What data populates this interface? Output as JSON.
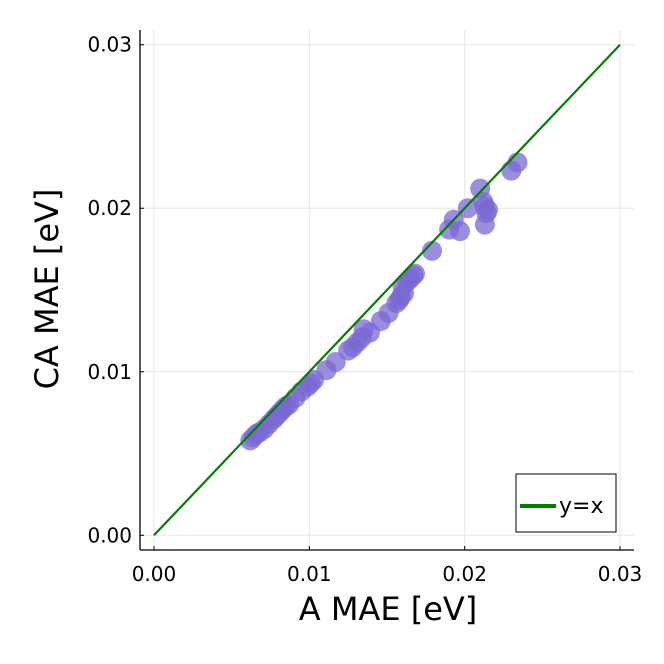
{
  "chart_data": {
    "type": "scatter",
    "title": "",
    "xlabel": "A MAE [eV]",
    "ylabel": "CA MAE [eV]",
    "xlim": [
      -0.0009,
      0.0309
    ],
    "ylim": [
      -0.0009,
      0.0309
    ],
    "xticks": [
      0.0,
      0.01,
      0.02,
      0.03
    ],
    "yticks": [
      0.0,
      0.01,
      0.02,
      0.03
    ],
    "xtick_labels": [
      "0.00",
      "0.01",
      "0.02",
      "0.03"
    ],
    "ytick_labels": [
      "0.00",
      "0.01",
      "0.02",
      "0.03"
    ],
    "grid": true,
    "legend_position": "bottom-right",
    "series": [
      {
        "name": "data",
        "kind": "scatter",
        "color": "#7a68d3",
        "points": [
          [
            0.0062,
            0.0058
          ],
          [
            0.0064,
            0.006
          ],
          [
            0.0066,
            0.0062
          ],
          [
            0.0068,
            0.0063
          ],
          [
            0.0071,
            0.0065
          ],
          [
            0.0074,
            0.0068
          ],
          [
            0.0077,
            0.0071
          ],
          [
            0.0079,
            0.0073
          ],
          [
            0.0081,
            0.0075
          ],
          [
            0.0083,
            0.0077
          ],
          [
            0.0085,
            0.0079
          ],
          [
            0.0087,
            0.008
          ],
          [
            0.0091,
            0.0084
          ],
          [
            0.0095,
            0.0088
          ],
          [
            0.0099,
            0.0091
          ],
          [
            0.0101,
            0.0093
          ],
          [
            0.0103,
            0.0095
          ],
          [
            0.0111,
            0.0101
          ],
          [
            0.0117,
            0.0106
          ],
          [
            0.0125,
            0.0113
          ],
          [
            0.0128,
            0.0115
          ],
          [
            0.0131,
            0.0118
          ],
          [
            0.0134,
            0.0121
          ],
          [
            0.0135,
            0.0126
          ],
          [
            0.0139,
            0.0124
          ],
          [
            0.0146,
            0.0131
          ],
          [
            0.0151,
            0.0136
          ],
          [
            0.0156,
            0.0142
          ],
          [
            0.0158,
            0.0144
          ],
          [
            0.0159,
            0.0146
          ],
          [
            0.0161,
            0.0148
          ],
          [
            0.016,
            0.0152
          ],
          [
            0.0163,
            0.0155
          ],
          [
            0.0165,
            0.0157
          ],
          [
            0.0167,
            0.0159
          ],
          [
            0.0168,
            0.016
          ],
          [
            0.0179,
            0.0174
          ],
          [
            0.019,
            0.0187
          ],
          [
            0.0193,
            0.0193
          ],
          [
            0.0197,
            0.0186
          ],
          [
            0.0202,
            0.02
          ],
          [
            0.021,
            0.0212
          ],
          [
            0.0212,
            0.0204
          ],
          [
            0.0213,
            0.0201
          ],
          [
            0.0214,
            0.0197
          ],
          [
            0.0215,
            0.0199
          ],
          [
            0.0213,
            0.019
          ],
          [
            0.023,
            0.0223
          ],
          [
            0.0234,
            0.0228
          ]
        ]
      },
      {
        "name": "y=x",
        "kind": "line",
        "color": "#008000",
        "points": [
          [
            0.0,
            0.0
          ],
          [
            0.03,
            0.03
          ]
        ]
      }
    ]
  }
}
